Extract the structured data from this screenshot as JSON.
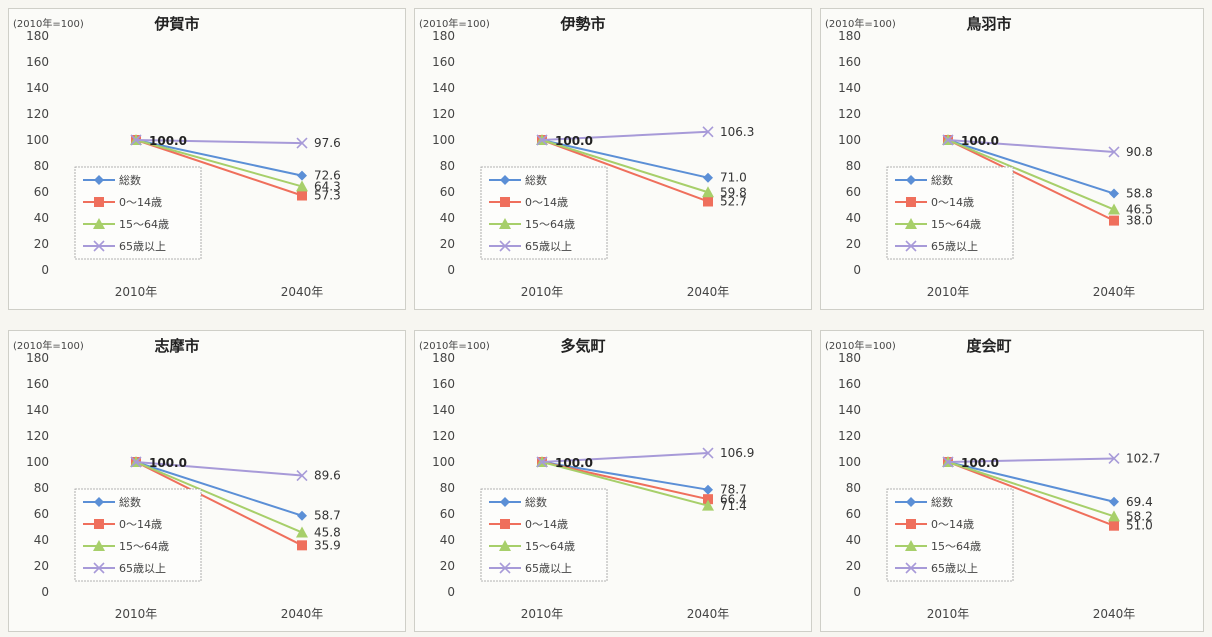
{
  "chart_data": [
    {
      "type": "line",
      "title": "伊賀市",
      "unit_label": "(2010年=100)",
      "categories": [
        "2010年",
        "2040年"
      ],
      "ylim": [
        0,
        180
      ],
      "yticks": [
        "0",
        "20",
        "40",
        "60",
        "80",
        "100",
        "120",
        "140",
        "160",
        "180"
      ],
      "base_label": "100.0",
      "legend": [
        "総数",
        "0〜14歳",
        "15〜64歳",
        "65歳以上"
      ],
      "series": [
        {
          "name": "総数",
          "values": [
            100,
            72.6
          ],
          "label": "72.6"
        },
        {
          "name": "0〜14歳",
          "values": [
            100,
            57.3
          ],
          "label": "57.3"
        },
        {
          "name": "15〜64歳",
          "values": [
            100,
            64.3
          ],
          "label": "64.3"
        },
        {
          "name": "65歳以上",
          "values": [
            100,
            97.6
          ],
          "label": "97.6"
        }
      ]
    },
    {
      "type": "line",
      "title": "伊勢市",
      "unit_label": "(2010年=100)",
      "categories": [
        "2010年",
        "2040年"
      ],
      "ylim": [
        0,
        180
      ],
      "yticks": [
        "0",
        "20",
        "40",
        "60",
        "80",
        "100",
        "120",
        "140",
        "160",
        "180"
      ],
      "base_label": "100.0",
      "legend": [
        "総数",
        "0〜14歳",
        "15〜64歳",
        "65歳以上"
      ],
      "series": [
        {
          "name": "総数",
          "values": [
            100,
            71.0
          ],
          "label": "71.0"
        },
        {
          "name": "0〜14歳",
          "values": [
            100,
            52.7
          ],
          "label": "52.7"
        },
        {
          "name": "15〜64歳",
          "values": [
            100,
            59.8
          ],
          "label": "59.8"
        },
        {
          "name": "65歳以上",
          "values": [
            100,
            106.3
          ],
          "label": "106.3"
        }
      ]
    },
    {
      "type": "line",
      "title": "鳥羽市",
      "unit_label": "(2010年=100)",
      "categories": [
        "2010年",
        "2040年"
      ],
      "ylim": [
        0,
        180
      ],
      "yticks": [
        "0",
        "20",
        "40",
        "60",
        "80",
        "100",
        "120",
        "140",
        "160",
        "180"
      ],
      "base_label": "100.0",
      "legend": [
        "総数",
        "0〜14歳",
        "15〜64歳",
        "65歳以上"
      ],
      "series": [
        {
          "name": "総数",
          "values": [
            100,
            58.8
          ],
          "label": "58.8"
        },
        {
          "name": "0〜14歳",
          "values": [
            100,
            38.0
          ],
          "label": "38.0"
        },
        {
          "name": "15〜64歳",
          "values": [
            100,
            46.5
          ],
          "label": "46.5"
        },
        {
          "name": "65歳以上",
          "values": [
            100,
            90.8
          ],
          "label": "90.8"
        }
      ]
    },
    {
      "type": "line",
      "title": "志摩市",
      "unit_label": "(2010年=100)",
      "categories": [
        "2010年",
        "2040年"
      ],
      "ylim": [
        0,
        180
      ],
      "yticks": [
        "0",
        "20",
        "40",
        "60",
        "80",
        "100",
        "120",
        "140",
        "160",
        "180"
      ],
      "base_label": "100.0",
      "legend": [
        "総数",
        "0〜14歳",
        "15〜64歳",
        "65歳以上"
      ],
      "series": [
        {
          "name": "総数",
          "values": [
            100,
            58.7
          ],
          "label": "58.7"
        },
        {
          "name": "0〜14歳",
          "values": [
            100,
            35.9
          ],
          "label": "35.9"
        },
        {
          "name": "15〜64歳",
          "values": [
            100,
            45.8
          ],
          "label": "45.8"
        },
        {
          "name": "65歳以上",
          "values": [
            100,
            89.6
          ],
          "label": "89.6"
        }
      ]
    },
    {
      "type": "line",
      "title": "多気町",
      "unit_label": "(2010年=100)",
      "categories": [
        "2010年",
        "2040年"
      ],
      "ylim": [
        0,
        180
      ],
      "yticks": [
        "0",
        "20",
        "40",
        "60",
        "80",
        "100",
        "120",
        "140",
        "160",
        "180"
      ],
      "base_label": "100.0",
      "legend": [
        "総数",
        "0〜14歳",
        "15〜64歳",
        "65歳以上"
      ],
      "series": [
        {
          "name": "総数",
          "values": [
            100,
            78.7
          ],
          "label": "78.7"
        },
        {
          "name": "0〜14歳",
          "values": [
            100,
            71.4
          ],
          "label": "71.4"
        },
        {
          "name": "15〜64歳",
          "values": [
            100,
            66.4
          ],
          "label": "66.4"
        },
        {
          "name": "65歳以上",
          "values": [
            100,
            106.9
          ],
          "label": "106.9"
        }
      ]
    },
    {
      "type": "line",
      "title": "度会町",
      "unit_label": "(2010年=100)",
      "categories": [
        "2010年",
        "2040年"
      ],
      "ylim": [
        0,
        180
      ],
      "yticks": [
        "0",
        "20",
        "40",
        "60",
        "80",
        "100",
        "120",
        "140",
        "160",
        "180"
      ],
      "base_label": "100.0",
      "legend": [
        "総数",
        "0〜14歳",
        "15〜64歳",
        "65歳以上"
      ],
      "series": [
        {
          "name": "総数",
          "values": [
            100,
            69.4
          ],
          "label": "69.4"
        },
        {
          "name": "0〜14歳",
          "values": [
            100,
            51.0
          ],
          "label": "51.0"
        },
        {
          "name": "15〜64歳",
          "values": [
            100,
            58.2
          ],
          "label": "58.2"
        },
        {
          "name": "65歳以上",
          "values": [
            100,
            102.7
          ],
          "label": "102.7"
        }
      ]
    }
  ],
  "series_colors": [
    "#5b8fd6",
    "#ef6f5c",
    "#a7cf6a",
    "#a79ad8"
  ],
  "series_markers": [
    "diamond",
    "square",
    "triangle",
    "x"
  ]
}
